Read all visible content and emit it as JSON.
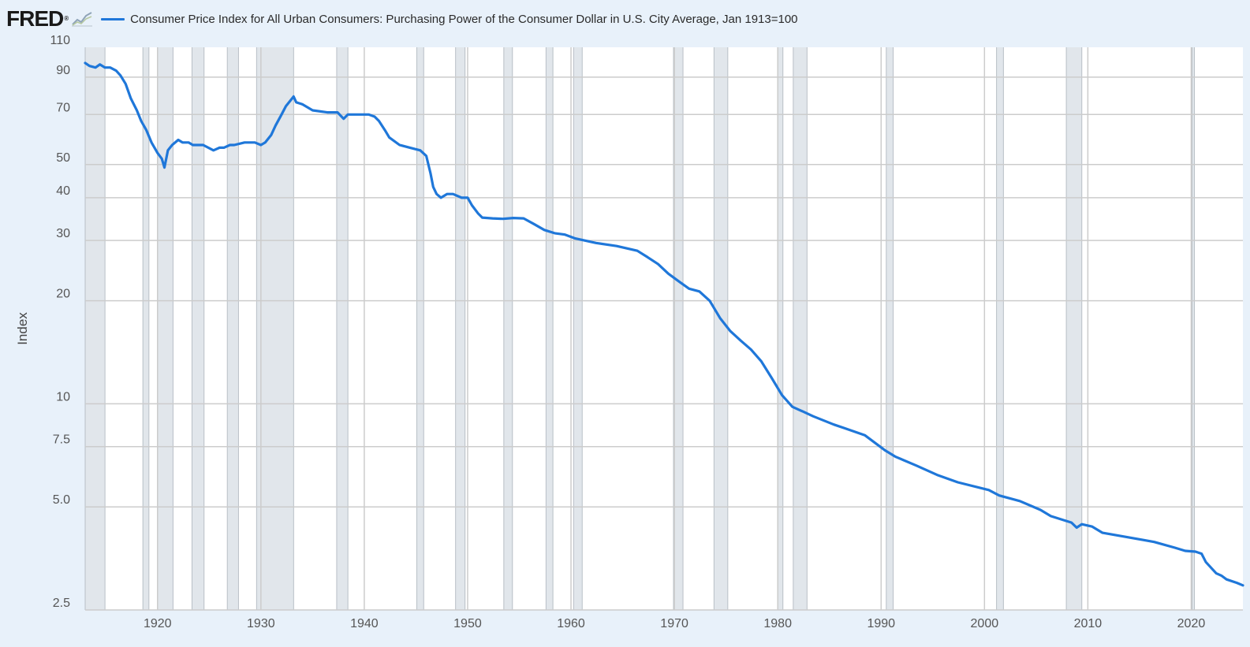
{
  "header": {
    "logo_text": "FRED",
    "logo_reg": "®",
    "logo_icon": "line-chart-icon"
  },
  "colors": {
    "background": "#e8f1fa",
    "plot_background": "#ffffff",
    "recession_shading": "#e1e6eb",
    "gridline": "#cccccc",
    "series": "#1f77d9"
  },
  "chart_data": {
    "type": "line",
    "title": "",
    "xlabel": "",
    "ylabel": "Index",
    "y_scale": "log",
    "ylim": [
      2.5,
      110
    ],
    "xlim": [
      "1913-01",
      "2025-01"
    ],
    "y_ticks": [
      "2.5",
      "5.0",
      "7.5",
      "10",
      "20",
      "30",
      "40",
      "50",
      "70",
      "90",
      "110"
    ],
    "x_ticks": [
      "1920",
      "1930",
      "1940",
      "1950",
      "1960",
      "1970",
      "1980",
      "1990",
      "2000",
      "2010",
      "2020"
    ],
    "grid": true,
    "legend_position": "top-left",
    "recessions": [
      [
        "1913-01",
        "1914-12"
      ],
      [
        "1918-08",
        "1919-03"
      ],
      [
        "1920-01",
        "1921-07"
      ],
      [
        "1923-05",
        "1924-07"
      ],
      [
        "1926-10",
        "1927-11"
      ],
      [
        "1929-08",
        "1933-03"
      ],
      [
        "1937-05",
        "1938-06"
      ],
      [
        "1945-02",
        "1945-10"
      ],
      [
        "1948-11",
        "1949-10"
      ],
      [
        "1953-07",
        "1954-05"
      ],
      [
        "1957-08",
        "1958-04"
      ],
      [
        "1960-04",
        "1961-02"
      ],
      [
        "1969-12",
        "1970-11"
      ],
      [
        "1973-11",
        "1975-03"
      ],
      [
        "1980-01",
        "1980-07"
      ],
      [
        "1981-07",
        "1982-11"
      ],
      [
        "1990-07",
        "1991-03"
      ],
      [
        "2001-03",
        "2001-11"
      ],
      [
        "2007-12",
        "2009-06"
      ],
      [
        "2020-02",
        "2020-04"
      ]
    ],
    "series": [
      {
        "name": "Consumer Price Index for All Urban Consumers: Purchasing Power of the Consumer Dollar in U.S. City Average, Jan 1913=100",
        "x": [
          "1913-01",
          "1913-06",
          "1914-01",
          "1914-06",
          "1914-12",
          "1915-06",
          "1916-01",
          "1916-06",
          "1916-12",
          "1917-06",
          "1918-01",
          "1918-06",
          "1918-12",
          "1919-06",
          "1920-01",
          "1920-06",
          "1920-09",
          "1921-01",
          "1921-06",
          "1922-01",
          "1922-06",
          "1923-01",
          "1923-06",
          "1924-06",
          "1925-06",
          "1926-01",
          "1926-06",
          "1927-01",
          "1927-06",
          "1928-06",
          "1929-06",
          "1930-01",
          "1930-06",
          "1931-01",
          "1931-06",
          "1932-01",
          "1932-06",
          "1933-03",
          "1933-06",
          "1934-01",
          "1935-01",
          "1936-06",
          "1937-06",
          "1938-01",
          "1938-06",
          "1939-06",
          "1940-06",
          "1941-01",
          "1941-06",
          "1942-01",
          "1942-06",
          "1943-06",
          "1944-06",
          "1945-06",
          "1946-01",
          "1946-06",
          "1946-09",
          "1947-01",
          "1947-06",
          "1948-01",
          "1948-08",
          "1949-06",
          "1950-01",
          "1950-06",
          "1951-01",
          "1951-06",
          "1952-06",
          "1953-06",
          "1954-06",
          "1955-06",
          "1956-06",
          "1957-06",
          "1958-06",
          "1959-06",
          "1960-06",
          "1962-06",
          "1964-06",
          "1966-06",
          "1967-06",
          "1968-06",
          "1969-06",
          "1970-06",
          "1971-06",
          "1972-06",
          "1973-06",
          "1974-06",
          "1975-06",
          "1976-06",
          "1977-06",
          "1978-06",
          "1979-06",
          "1980-06",
          "1981-06",
          "1982-06",
          "1983-06",
          "1985-06",
          "1986-06",
          "1988-06",
          "1990-06",
          "1991-06",
          "1993-06",
          "1995-06",
          "1997-06",
          "2000-06",
          "2001-06",
          "2003-06",
          "2005-06",
          "2006-06",
          "2008-06",
          "2008-12",
          "2009-06",
          "2010-06",
          "2011-06",
          "2013-06",
          "2015-06",
          "2016-06",
          "2018-06",
          "2019-06",
          "2020-06",
          "2021-01",
          "2021-06",
          "2022-06",
          "2022-12",
          "2023-06",
          "2024-06",
          "2025-01"
        ],
        "values": [
          99,
          97,
          96,
          98,
          96,
          96,
          94,
          91,
          86,
          78,
          72,
          67,
          63,
          58,
          54,
          52,
          49,
          55,
          57,
          59,
          58,
          58,
          57,
          57,
          55,
          56,
          56,
          57,
          57,
          58,
          58,
          57,
          58,
          61,
          65,
          70,
          74,
          79,
          76,
          75,
          72,
          71,
          71,
          68,
          70,
          70,
          70,
          69,
          67,
          63,
          60,
          57,
          56,
          55,
          53,
          47,
          43,
          41,
          40,
          41,
          41,
          40,
          40,
          38,
          36,
          35,
          34.8,
          34.7,
          34.9,
          34.8,
          33.5,
          32.2,
          31.5,
          31.2,
          30.4,
          29.5,
          28.9,
          28,
          26.8,
          25.6,
          24,
          22.8,
          21.7,
          21.3,
          20,
          17.8,
          16.3,
          15.3,
          14.4,
          13.3,
          11.9,
          10.6,
          9.8,
          9.5,
          9.2,
          8.7,
          8.5,
          8.1,
          7.3,
          7,
          6.6,
          6.2,
          5.9,
          5.6,
          5.4,
          5.2,
          4.9,
          4.7,
          4.5,
          4.35,
          4.45,
          4.38,
          4.2,
          4.1,
          4.0,
          3.95,
          3.8,
          3.72,
          3.7,
          3.65,
          3.45,
          3.2,
          3.15,
          3.07,
          3.0,
          2.95
        ]
      }
    ]
  }
}
